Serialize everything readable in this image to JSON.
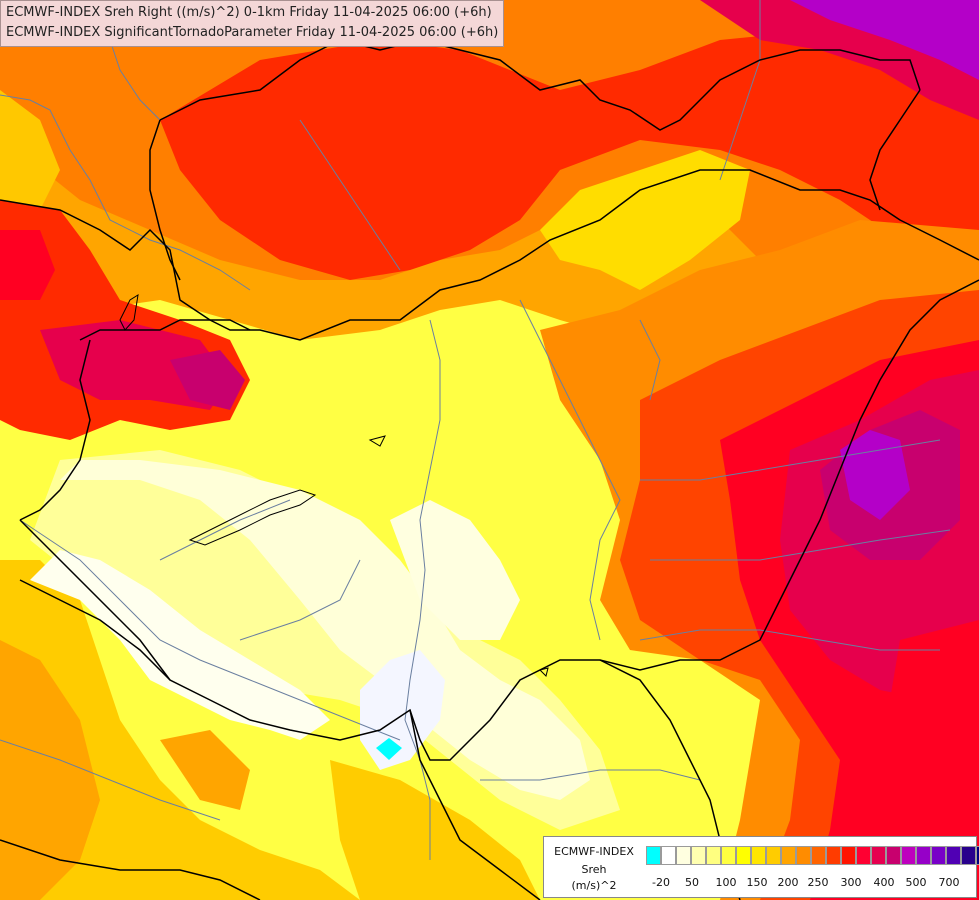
{
  "title": {
    "line1": "ECMWF-INDEX Sreh Right ((m/s)^2) 0-1km Friday 11-04-2025 06:00 (+6h)",
    "line2": "ECMWF-INDEX SignificantTornadoParameter Friday 11-04-2025 06:00 (+6h)"
  },
  "legend": {
    "source": "ECMWF-INDEX",
    "variable": "Sreh",
    "unit": "(m/s)^2",
    "ticks": [
      "-20",
      "50",
      "100",
      "150",
      "200",
      "250",
      "300",
      "400",
      "500",
      "700"
    ],
    "colors": [
      "#00ffff",
      "#ffffff",
      "#ffffe0",
      "#ffffb0",
      "#ffff80",
      "#ffff40",
      "#ffff00",
      "#ffe600",
      "#ffcc00",
      "#ffa500",
      "#ff8c00",
      "#ff6400",
      "#ff3c00",
      "#ff1400",
      "#ff0032",
      "#e60050",
      "#c8006e",
      "#be00be",
      "#9600c8",
      "#7800c8",
      "#5000b4",
      "#28008c",
      "#000080"
    ]
  },
  "colors": {
    "cream": "#ffffe0",
    "pale_yellow": "#ffff99",
    "yellow": "#ffff33",
    "gold": "#ffdd00",
    "orange": "#ffa500",
    "dark_orange": "#ff7f00",
    "red_orange": "#ff4400",
    "red": "#ff0022",
    "crimson": "#e6004c",
    "magenta": "#c8006e",
    "purple": "#b400c8",
    "cyan": "#00ffff",
    "border_line": "#000000",
    "river_line": "#6a7fa0"
  }
}
